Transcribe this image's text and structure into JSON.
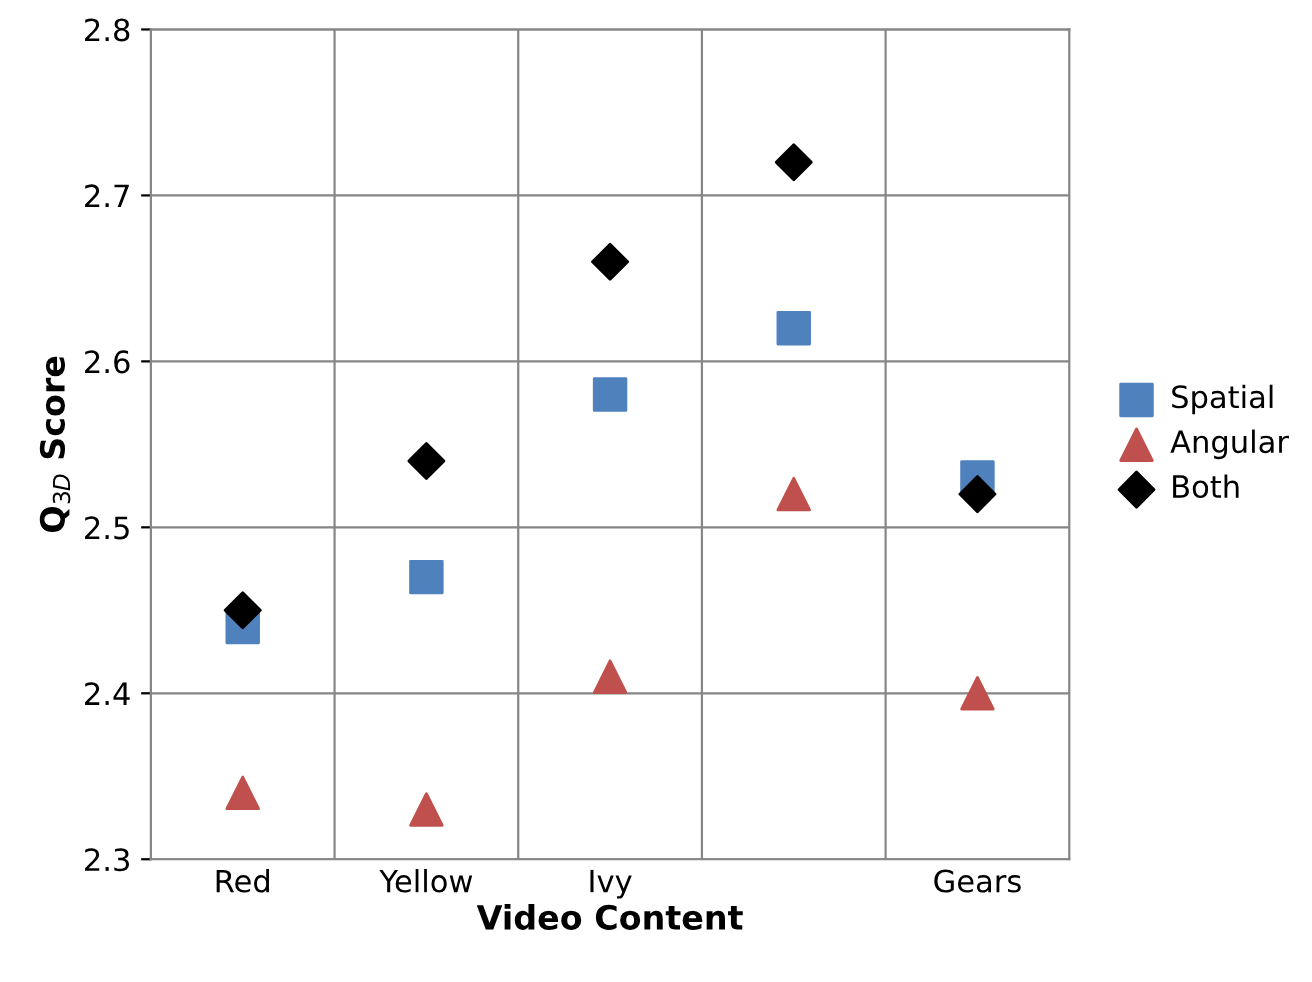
{
  "chart_data": {
    "type": "scatter",
    "xlabel": "Video Content",
    "ylabel": "Q$_{3D}$ Score",
    "categories": [
      "Red",
      "Yellow",
      "Ivy",
      null,
      "Gears"
    ],
    "series": [
      {
        "name": "Spatial",
        "color": "#4f81bd",
        "marker": "square",
        "values": [
          2.44,
          2.47,
          2.58,
          2.62,
          2.53
        ]
      },
      {
        "name": "Angular",
        "color": "#c0504d",
        "marker": "triangle",
        "values": [
          2.34,
          2.33,
          2.41,
          2.52,
          2.4
        ]
      },
      {
        "name": "Both",
        "color": "#000000",
        "marker": "diamond",
        "values": [
          2.45,
          2.54,
          2.66,
          2.72,
          2.52
        ]
      }
    ],
    "ylim": [
      2.3,
      2.8
    ],
    "yticks": [
      2.3,
      2.4,
      2.5,
      2.6,
      2.7,
      2.8
    ],
    "grid": true,
    "legend": "right"
  }
}
